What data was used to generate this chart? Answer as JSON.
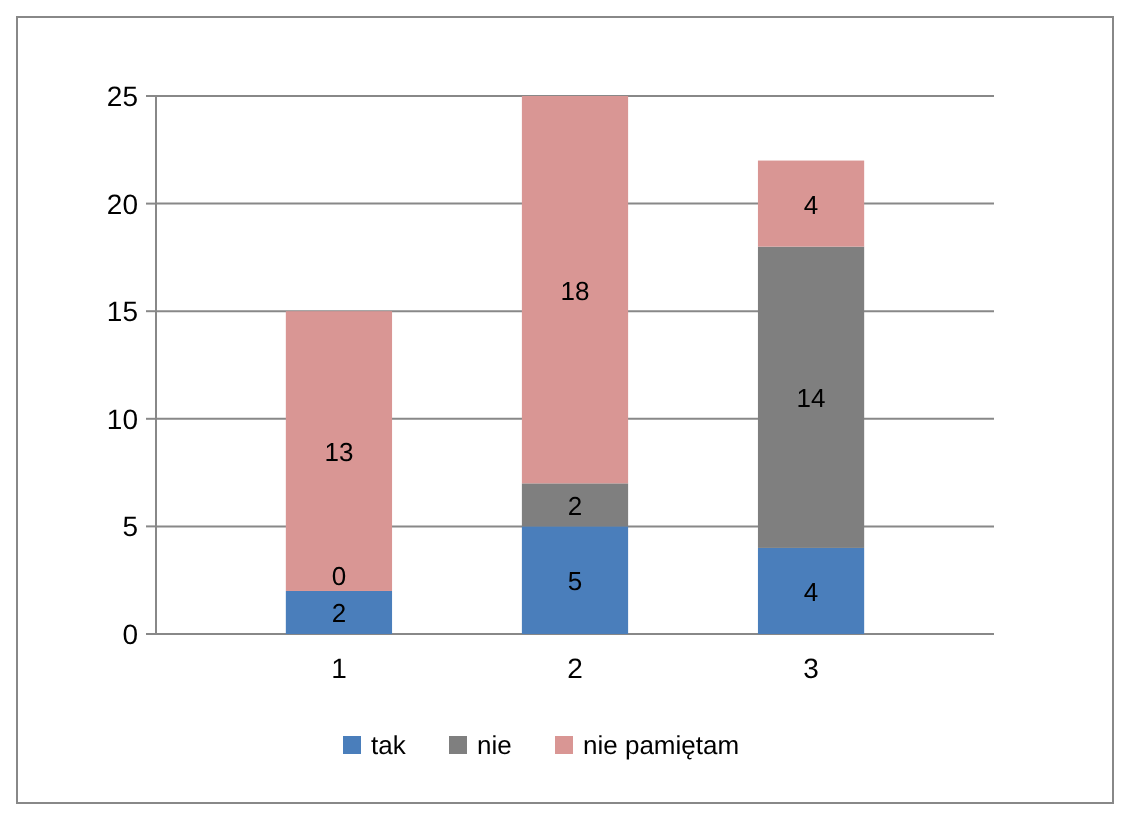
{
  "chart_data": {
    "type": "bar",
    "stacked": true,
    "categories": [
      "1",
      "2",
      "3"
    ],
    "series": [
      {
        "name": "tak",
        "color": "#4a7ebb",
        "values": [
          2,
          5,
          4
        ],
        "value_labels": [
          "2",
          "5",
          "4"
        ]
      },
      {
        "name": "nie",
        "color": "#7f7f7f",
        "values": [
          0,
          2,
          14
        ],
        "value_labels": [
          null,
          "2",
          "14"
        ]
      },
      {
        "name": "nie pamiętam",
        "color": "#d99694",
        "values": [
          13,
          18,
          4
        ],
        "value_labels": [
          "13",
          "18",
          "4"
        ]
      }
    ],
    "annotations": [
      {
        "text": "0",
        "x": "1",
        "y": 2
      }
    ],
    "ylim": [
      0,
      25
    ],
    "yticks": [
      0,
      5,
      10,
      15,
      20,
      25
    ],
    "grid": "y",
    "legend": "bottom"
  }
}
